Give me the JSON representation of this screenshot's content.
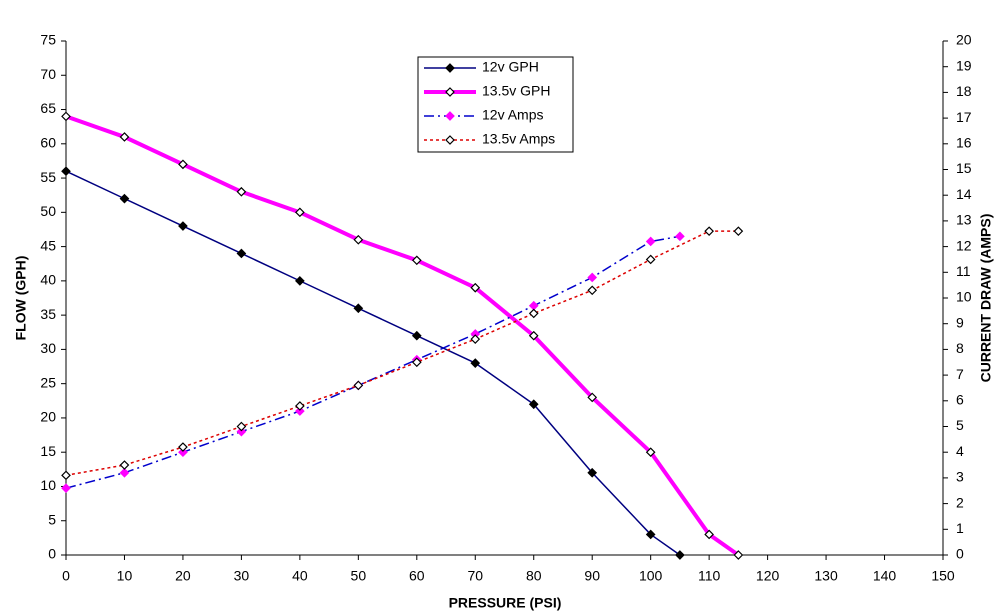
{
  "chart_data": {
    "type": "line",
    "xlabel": "PRESSURE (PSI)",
    "ylabel": "FLOW (GPH)",
    "y2label": "CURRENT DRAW (AMPS)",
    "xlim": [
      0,
      150
    ],
    "xticks": [
      0,
      10,
      20,
      30,
      40,
      50,
      60,
      70,
      80,
      90,
      100,
      110,
      120,
      130,
      140,
      150
    ],
    "ylim": [
      0,
      75
    ],
    "yticks": [
      0,
      5,
      10,
      15,
      20,
      25,
      30,
      35,
      40,
      45,
      50,
      55,
      60,
      65,
      70,
      75
    ],
    "y2lim": [
      0,
      20
    ],
    "y2ticks": [
      0,
      1,
      2,
      3,
      4,
      5,
      6,
      7,
      8,
      9,
      10,
      11,
      12,
      13,
      14,
      15,
      16,
      17,
      18,
      19,
      20
    ],
    "grid": false,
    "legend": "upper center",
    "series": [
      {
        "name": "12v GPH",
        "color": "#000080",
        "marker_color": "#000000",
        "marker_fill": "#000000",
        "line_style": "solid",
        "line_width": 1.5,
        "x": [
          0,
          10,
          20,
          30,
          40,
          50,
          60,
          70,
          80,
          90,
          100,
          105
        ],
        "values": [
          56,
          52,
          48,
          44,
          40,
          36,
          32,
          28,
          22,
          12,
          3,
          0
        ]
      },
      {
        "name": "13.5v GPH",
        "color": "#ff00ff",
        "marker_color": "#000000",
        "marker_fill": "#ffffff",
        "line_style": "solid",
        "line_width": 4,
        "x": [
          0,
          10,
          20,
          30,
          40,
          50,
          60,
          70,
          80,
          90,
          100,
          110,
          115
        ],
        "values": [
          64,
          61,
          57,
          53,
          50,
          46,
          43,
          39,
          32,
          23,
          15,
          3,
          0
        ]
      },
      {
        "name": "12v Amps",
        "color": "#0000cc",
        "marker_color": "#ff00ff",
        "marker_fill": "#ff00ff",
        "line_style": "dashdot",
        "line_width": 1.5,
        "axis": "y2",
        "x": [
          0,
          10,
          20,
          30,
          40,
          50,
          60,
          70,
          80,
          90,
          100,
          105
        ],
        "values": [
          2.6,
          3.2,
          4.0,
          4.8,
          5.6,
          6.6,
          7.6,
          8.6,
          9.7,
          10.8,
          12.2,
          12.4
        ]
      },
      {
        "name": "13.5v Amps",
        "color": "#dd0000",
        "marker_color": "#000000",
        "marker_fill": "#ffffff",
        "line_style": "dotted",
        "line_width": 1.5,
        "axis": "y2",
        "x": [
          0,
          10,
          20,
          30,
          40,
          50,
          60,
          70,
          80,
          90,
          100,
          110,
          115
        ],
        "values": [
          3.1,
          3.5,
          4.2,
          5.0,
          5.8,
          6.6,
          7.5,
          8.4,
          9.4,
          10.3,
          11.5,
          12.6,
          12.6
        ]
      }
    ]
  }
}
